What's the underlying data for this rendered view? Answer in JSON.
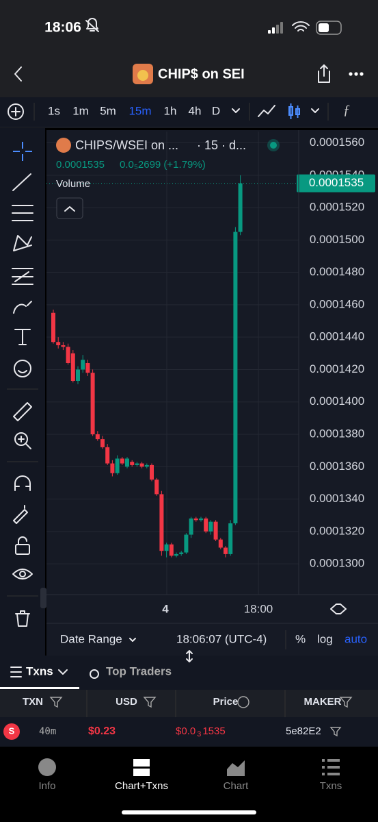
{
  "status_bar": {
    "time": "18:06"
  },
  "header": {
    "title": "CHIP$ on SEI"
  },
  "toolbar": {
    "intervals": [
      "1s",
      "1m",
      "5m",
      "15m",
      "1h",
      "4h",
      "D"
    ],
    "active_interval": "15m"
  },
  "legend": {
    "pair": "CHIPS/WSEI on ...",
    "interval": "· 15 · d...",
    "price": "0.0001535",
    "change": "0.0₅2699 (+1.79%)",
    "volume_label": "Volume"
  },
  "chart_data": {
    "type": "candlestick",
    "up_color": "#089981",
    "down_color": "#f23645",
    "open": [
      0.0001455,
      0.0001437,
      0.0001435,
      0.0001434,
      0.000143,
      0.0001413,
      0.000142,
      0.0001424,
      0.0001418,
      0.000138,
      0.0001377,
      0.0001372,
      0.0001362,
      0.0001356,
      0.0001365,
      0.000136,
      0.0001363,
      0.0001361,
      0.0001362,
      0.000136,
      0.0001361,
      0.0001352,
      0.0001343,
      0.0001308,
      0.0001312,
      0.0001305,
      0.0001306,
      0.0001307,
      0.0001318,
      0.0001328,
      0.0001327,
      0.0001328,
      0.000132,
      0.0001326,
      0.0001315,
      0.000131,
      0.0001306,
      0.0001325,
      0.0001505
    ],
    "high": [
      0.0001457,
      0.000144,
      0.0001437,
      0.0001436,
      0.0001432,
      0.0001422,
      0.0001429,
      0.0001426,
      0.000142,
      0.0001382,
      0.0001379,
      0.0001374,
      0.0001364,
      0.0001367,
      0.0001366,
      0.0001366,
      0.0001364,
      0.0001363,
      0.0001363,
      0.0001362,
      0.0001362,
      0.0001353,
      0.0001345,
      0.0001313,
      0.0001313,
      0.0001307,
      0.0001308,
      0.0001319,
      0.0001329,
      0.0001329,
      0.0001329,
      0.0001329,
      0.0001327,
      0.0001327,
      0.0001316,
      0.0001311,
      0.0001327,
      0.0001508,
      0.000154
    ],
    "low": [
      0.0001436,
      0.0001433,
      0.0001432,
      0.0001423,
      0.0001412,
      0.0001411,
      0.0001418,
      0.0001416,
      0.0001379,
      0.0001376,
      0.0001371,
      0.0001361,
      0.0001354,
      0.0001355,
      0.0001361,
      0.0001359,
      0.000136,
      0.000136,
      0.0001359,
      0.0001359,
      0.0001351,
      0.0001342,
      0.0001305,
      0.0001304,
      0.0001304,
      0.0001304,
      0.0001305,
      0.0001306,
      0.0001316,
      0.0001326,
      0.0001326,
      0.0001319,
      0.0001318,
      0.0001314,
      0.0001309,
      0.0001304,
      0.0001305,
      0.0001324,
      0.0001503
    ],
    "close": [
      0.0001437,
      0.0001435,
      0.0001434,
      0.0001424,
      0.0001413,
      0.000142,
      0.0001426,
      0.0001418,
      0.000138,
      0.0001377,
      0.0001372,
      0.0001362,
      0.0001356,
      0.0001365,
      0.0001362,
      0.0001365,
      0.0001361,
      0.0001362,
      0.000136,
      0.0001361,
      0.0001352,
      0.0001343,
      0.0001308,
      0.0001312,
      0.0001305,
      0.0001306,
      0.0001307,
      0.0001318,
      0.0001328,
      0.0001327,
      0.0001328,
      0.000132,
      0.0001326,
      0.0001315,
      0.000131,
      0.0001306,
      0.0001325,
      0.0001505,
      0.0001535
    ],
    "ylim": [
      0.0001281,
      0.0001567
    ],
    "yticks": [
      {
        "value": 0.000156,
        "label": "0.0001560"
      },
      {
        "value": 0.000154,
        "label": "0.0001540"
      },
      {
        "value": 0.000152,
        "label": "0.0001520"
      },
      {
        "value": 0.00015,
        "label": "0.0001500"
      },
      {
        "value": 0.000148,
        "label": "0.0001480"
      },
      {
        "value": 0.000146,
        "label": "0.0001460"
      },
      {
        "value": 0.000144,
        "label": "0.0001440"
      },
      {
        "value": 0.000142,
        "label": "0.0001420"
      },
      {
        "value": 0.00014,
        "label": "0.0001400"
      },
      {
        "value": 0.000138,
        "label": "0.0001380"
      },
      {
        "value": 0.000136,
        "label": "0.0001360"
      },
      {
        "value": 0.000134,
        "label": "0.0001340"
      },
      {
        "value": 0.000132,
        "label": "0.0001320"
      },
      {
        "value": 0.00013,
        "label": "0.0001300"
      }
    ],
    "last_price": {
      "value": 0.0001535,
      "label": "0.0001535"
    },
    "x_labels": [
      "4",
      "18:00"
    ],
    "grid": true
  },
  "chart_footer": {
    "date_range": "Date Range",
    "time": "18:06:07 (UTC-4)",
    "percent": "%",
    "log": "log",
    "auto": "auto"
  },
  "tabs": {
    "txns": "Txns",
    "top_traders": "Top Traders"
  },
  "table": {
    "headers": [
      "TXN",
      "USD",
      "Price",
      "MAKER"
    ],
    "rows": [
      {
        "side": "S",
        "age": "40m",
        "usd": "$0.23",
        "price": {
          "prefix": "$0.0",
          "subscript": "3",
          "digits": "1535"
        },
        "maker": "5e82E2"
      }
    ]
  },
  "nav": [
    "Info",
    "Chart+Txns",
    "Chart",
    "Txns"
  ]
}
